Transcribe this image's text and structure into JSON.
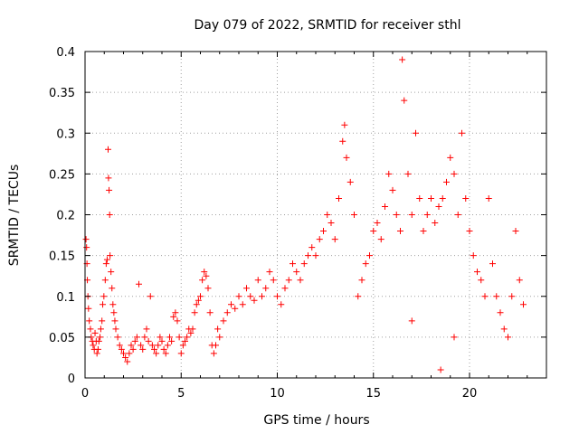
{
  "chart_data": {
    "type": "scatter",
    "title": "Day 079 of 2022, SRMTID for receiver sthl",
    "xlabel": "GPS time / hours",
    "ylabel": "SRMTID / TECUs",
    "xlim": [
      0,
      24
    ],
    "ylim": [
      0,
      0.4
    ],
    "grid": true,
    "marker": "+",
    "colors": {
      "points": "#ff0000",
      "grid": "#a0a0a0",
      "axes": "#000000"
    },
    "xticks": [
      0,
      5,
      10,
      15,
      20
    ],
    "xtick_labels": [
      "0",
      "5",
      "10",
      "15",
      "20"
    ],
    "yticks": [
      0,
      0.05,
      0.1,
      0.15,
      0.2,
      0.25,
      0.3,
      0.35,
      0.4
    ],
    "ytick_labels": [
      "0",
      "0.05",
      "0.1",
      "0.15",
      "0.2",
      "0.25",
      "0.3",
      "0.35",
      "0.4"
    ],
    "series": [
      {
        "name": "SRMTID",
        "points": [
          [
            0.05,
            0.17
          ],
          [
            0.08,
            0.16
          ],
          [
            0.1,
            0.14
          ],
          [
            0.12,
            0.12
          ],
          [
            0.15,
            0.1
          ],
          [
            0.18,
            0.085
          ],
          [
            0.22,
            0.07
          ],
          [
            0.28,
            0.06
          ],
          [
            0.32,
            0.05
          ],
          [
            0.38,
            0.045
          ],
          [
            0.42,
            0.04
          ],
          [
            0.48,
            0.035
          ],
          [
            0.52,
            0.055
          ],
          [
            0.58,
            0.045
          ],
          [
            0.62,
            0.03
          ],
          [
            0.68,
            0.035
          ],
          [
            0.72,
            0.045
          ],
          [
            0.78,
            0.05
          ],
          [
            0.82,
            0.06
          ],
          [
            0.88,
            0.07
          ],
          [
            0.92,
            0.09
          ],
          [
            0.98,
            0.1
          ],
          [
            1.05,
            0.12
          ],
          [
            1.1,
            0.14
          ],
          [
            1.15,
            0.145
          ],
          [
            1.2,
            0.28
          ],
          [
            1.22,
            0.245
          ],
          [
            1.25,
            0.23
          ],
          [
            1.28,
            0.2
          ],
          [
            1.3,
            0.15
          ],
          [
            1.35,
            0.13
          ],
          [
            1.4,
            0.11
          ],
          [
            1.45,
            0.09
          ],
          [
            1.5,
            0.08
          ],
          [
            1.55,
            0.07
          ],
          [
            1.6,
            0.06
          ],
          [
            1.7,
            0.05
          ],
          [
            1.8,
            0.04
          ],
          [
            1.9,
            0.035
          ],
          [
            2.0,
            0.03
          ],
          [
            2.1,
            0.025
          ],
          [
            2.2,
            0.02
          ],
          [
            2.3,
            0.03
          ],
          [
            2.4,
            0.04
          ],
          [
            2.5,
            0.035
          ],
          [
            2.6,
            0.045
          ],
          [
            2.7,
            0.05
          ],
          [
            2.8,
            0.115
          ],
          [
            2.9,
            0.04
          ],
          [
            3.0,
            0.035
          ],
          [
            3.1,
            0.05
          ],
          [
            3.2,
            0.06
          ],
          [
            3.3,
            0.045
          ],
          [
            3.4,
            0.1
          ],
          [
            3.5,
            0.04
          ],
          [
            3.6,
            0.035
          ],
          [
            3.7,
            0.03
          ],
          [
            3.8,
            0.04
          ],
          [
            3.9,
            0.05
          ],
          [
            4.0,
            0.045
          ],
          [
            4.1,
            0.035
          ],
          [
            4.2,
            0.03
          ],
          [
            4.3,
            0.04
          ],
          [
            4.4,
            0.05
          ],
          [
            4.5,
            0.045
          ],
          [
            4.6,
            0.075
          ],
          [
            4.7,
            0.08
          ],
          [
            4.8,
            0.07
          ],
          [
            4.9,
            0.05
          ],
          [
            5.0,
            0.03
          ],
          [
            5.1,
            0.04
          ],
          [
            5.2,
            0.045
          ],
          [
            5.3,
            0.05
          ],
          [
            5.4,
            0.06
          ],
          [
            5.5,
            0.055
          ],
          [
            5.6,
            0.06
          ],
          [
            5.7,
            0.08
          ],
          [
            5.8,
            0.09
          ],
          [
            5.9,
            0.095
          ],
          [
            6.0,
            0.1
          ],
          [
            6.1,
            0.12
          ],
          [
            6.2,
            0.13
          ],
          [
            6.3,
            0.125
          ],
          [
            6.4,
            0.11
          ],
          [
            6.5,
            0.08
          ],
          [
            6.6,
            0.04
          ],
          [
            6.7,
            0.03
          ],
          [
            6.8,
            0.04
          ],
          [
            6.9,
            0.06
          ],
          [
            7.0,
            0.05
          ],
          [
            7.2,
            0.07
          ],
          [
            7.4,
            0.08
          ],
          [
            7.6,
            0.09
          ],
          [
            7.8,
            0.085
          ],
          [
            8.0,
            0.1
          ],
          [
            8.2,
            0.09
          ],
          [
            8.4,
            0.11
          ],
          [
            8.6,
            0.1
          ],
          [
            8.8,
            0.095
          ],
          [
            9.0,
            0.12
          ],
          [
            9.2,
            0.1
          ],
          [
            9.4,
            0.11
          ],
          [
            9.6,
            0.13
          ],
          [
            9.8,
            0.12
          ],
          [
            10.0,
            0.1
          ],
          [
            10.2,
            0.09
          ],
          [
            10.4,
            0.11
          ],
          [
            10.6,
            0.12
          ],
          [
            10.8,
            0.14
          ],
          [
            11.0,
            0.13
          ],
          [
            11.2,
            0.12
          ],
          [
            11.4,
            0.14
          ],
          [
            11.6,
            0.15
          ],
          [
            11.8,
            0.16
          ],
          [
            12.0,
            0.15
          ],
          [
            12.2,
            0.17
          ],
          [
            12.4,
            0.18
          ],
          [
            12.6,
            0.2
          ],
          [
            12.8,
            0.19
          ],
          [
            13.0,
            0.17
          ],
          [
            13.2,
            0.22
          ],
          [
            13.4,
            0.29
          ],
          [
            13.5,
            0.31
          ],
          [
            13.6,
            0.27
          ],
          [
            13.8,
            0.24
          ],
          [
            14.0,
            0.2
          ],
          [
            14.2,
            0.1
          ],
          [
            14.4,
            0.12
          ],
          [
            14.6,
            0.14
          ],
          [
            14.8,
            0.15
          ],
          [
            15.0,
            0.18
          ],
          [
            15.2,
            0.19
          ],
          [
            15.4,
            0.17
          ],
          [
            15.6,
            0.21
          ],
          [
            15.8,
            0.25
          ],
          [
            16.0,
            0.23
          ],
          [
            16.2,
            0.2
          ],
          [
            16.4,
            0.18
          ],
          [
            16.5,
            0.39
          ],
          [
            16.6,
            0.34
          ],
          [
            16.8,
            0.25
          ],
          [
            17.0,
            0.2
          ],
          [
            17.2,
            0.3
          ],
          [
            17.4,
            0.22
          ],
          [
            17.6,
            0.18
          ],
          [
            17.8,
            0.2
          ],
          [
            18.0,
            0.22
          ],
          [
            18.2,
            0.19
          ],
          [
            18.4,
            0.21
          ],
          [
            18.6,
            0.22
          ],
          [
            18.8,
            0.24
          ],
          [
            19.0,
            0.27
          ],
          [
            19.2,
            0.25
          ],
          [
            19.4,
            0.2
          ],
          [
            19.6,
            0.3
          ],
          [
            19.8,
            0.22
          ],
          [
            20.0,
            0.18
          ],
          [
            20.2,
            0.15
          ],
          [
            20.4,
            0.13
          ],
          [
            20.6,
            0.12
          ],
          [
            20.8,
            0.1
          ],
          [
            21.0,
            0.22
          ],
          [
            21.2,
            0.14
          ],
          [
            21.4,
            0.1
          ],
          [
            21.6,
            0.08
          ],
          [
            21.8,
            0.06
          ],
          [
            22.0,
            0.05
          ],
          [
            22.2,
            0.1
          ],
          [
            22.4,
            0.18
          ],
          [
            22.6,
            0.12
          ],
          [
            22.8,
            0.09
          ],
          [
            18.5,
            0.01
          ],
          [
            17.0,
            0.07
          ],
          [
            19.2,
            0.05
          ]
        ]
      }
    ]
  }
}
